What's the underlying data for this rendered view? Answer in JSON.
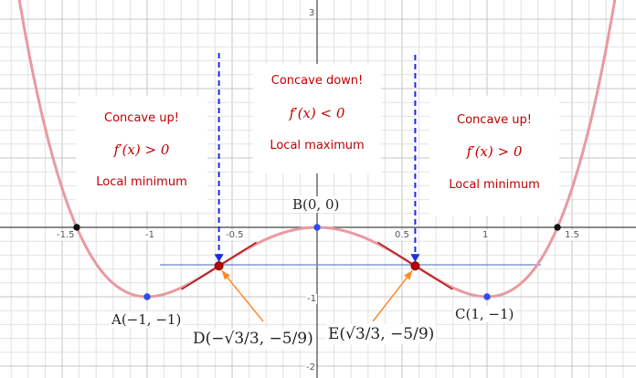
{
  "chart_data": {
    "type": "line",
    "function": "x^4 - 2x^2",
    "xlim": [
      -1.85,
      1.85
    ],
    "ylim": [
      -2.05,
      3.1
    ],
    "x_ticks": [
      "-1.5",
      "-1",
      "-0.5",
      "0.5",
      "1",
      "1.5"
    ],
    "y_ticks": [
      "3",
      "-1",
      "-2"
    ],
    "grid": true,
    "series": [
      {
        "color": "#e89aa0"
      }
    ],
    "points": [
      {
        "x": -1,
        "y": -1,
        "label": "A(−1, −1)",
        "color": "#2b4df0"
      },
      {
        "x": 0,
        "y": 0,
        "label": "B(0, 0)",
        "color": "#2b4df0"
      },
      {
        "x": 1,
        "y": -1,
        "label": "C(1, −1)",
        "color": "#2b4df0"
      },
      {
        "x": -0.5774,
        "y": -0.5556,
        "label": "D(−√3/3, −5/9)",
        "color": "#c00000"
      },
      {
        "x": 0.5774,
        "y": -0.5556,
        "label": "E(√3/3, −5/9)",
        "color": "#c00000"
      },
      {
        "x": -1.4142,
        "y": 0,
        "color": "#111111"
      },
      {
        "x": 1.4142,
        "y": 0,
        "color": "#111111"
      }
    ]
  },
  "regions": {
    "left": {
      "line1": "Concave up!",
      "line2": "f′(x) > 0",
      "line3": "Local minimum"
    },
    "middle": {
      "line1": "Concave down!",
      "line2": "f′(x) < 0",
      "line3": "Local maximum"
    },
    "right": {
      "line1": "Concave up!",
      "line2": "f′(x) > 0",
      "line3": "Local minimum"
    }
  },
  "labels": {
    "A": "A(−1, −1)",
    "B": "B(0, 0)",
    "C": "C(1, −1)",
    "D": "D(−√3/3, −5/9)",
    "E": "E(√3/3, −5/9)"
  },
  "colors": {
    "curve": "#e89aa0",
    "tangent": "#b01818",
    "arrow_blue": "#1a2ee6",
    "arrow_orange": "#ff8a2a",
    "horizontal_line": "#6a86c4"
  }
}
